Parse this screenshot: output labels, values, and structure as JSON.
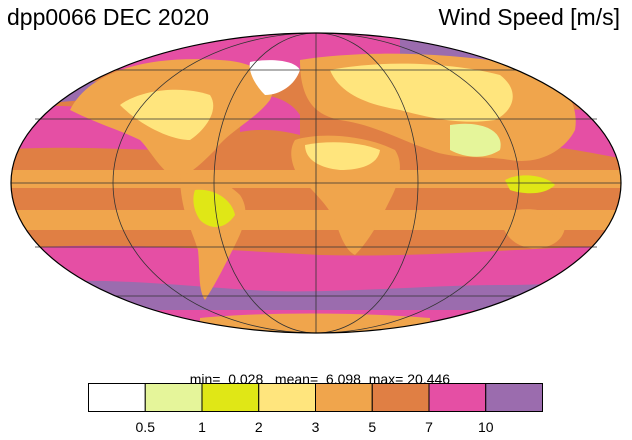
{
  "title": {
    "left": "dpp0066 DEC 2020",
    "right": "Wind Speed [m/s]"
  },
  "stats": {
    "min_label": "min=",
    "min_value": "0.028",
    "mean_label": "mean=",
    "mean_value": "6.098",
    "max_label": "max=",
    "max_value": "20.446"
  },
  "colorbar": {
    "colors": [
      "#ffffff",
      "#e5f59a",
      "#e0e716",
      "#ffe57d",
      "#f0a54c",
      "#e07f44",
      "#e54fa4",
      "#9b6cae"
    ],
    "tick_labels": [
      "0.5",
      "1",
      "2",
      "3",
      "5",
      "7",
      "10"
    ]
  }
}
